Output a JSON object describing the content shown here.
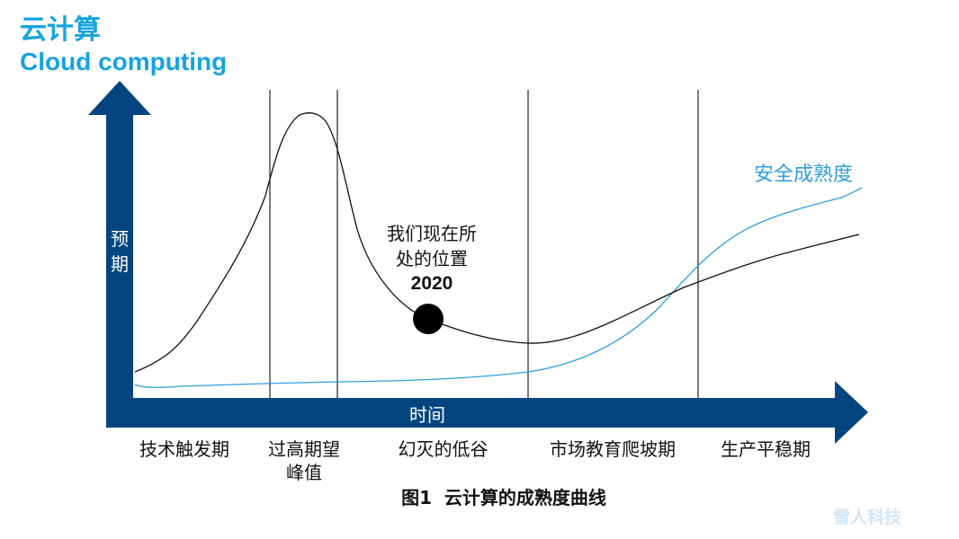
{
  "header": {
    "title_cn": "云计算",
    "title_en": "Cloud computing"
  },
  "axes": {
    "y_label": "预期",
    "x_label": "时间"
  },
  "phases": [
    {
      "label": "技术触发期"
    },
    {
      "label": "过高期望\n峰值"
    },
    {
      "label": "幻灭的低谷"
    },
    {
      "label": "市场教育爬坡期"
    },
    {
      "label": "生产平稳期"
    }
  ],
  "annotation": {
    "text": "我们现在所\n处的位置",
    "year": "2020"
  },
  "security_curve": {
    "label": "安全成熟度",
    "color": "#2f9ee0"
  },
  "caption": "图1  云计算的成熟度曲线",
  "watermark": "雪人科技",
  "colors": {
    "title": "#16a3e0",
    "axis": "#05457f",
    "hype_curve": "#111111",
    "security_curve": "#2f9ee0"
  }
}
